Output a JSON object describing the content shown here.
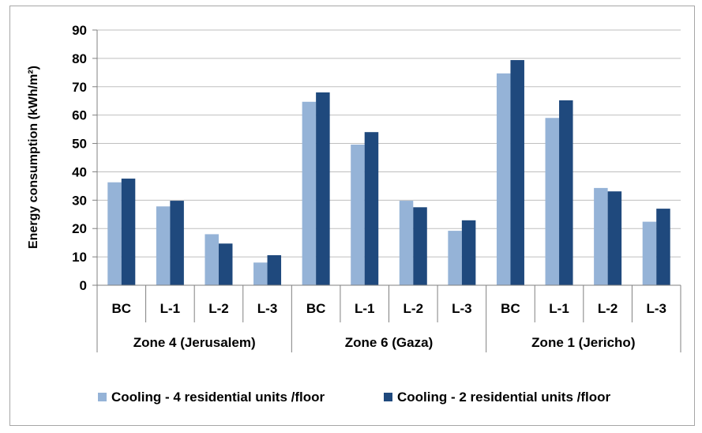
{
  "chart_data": {
    "type": "bar",
    "title": "",
    "xlabel": "",
    "ylabel": "Energy consumption (kWh/m²)",
    "ylim": [
      0,
      90
    ],
    "yticks": [
      0,
      10,
      20,
      30,
      40,
      50,
      60,
      70,
      80,
      90
    ],
    "grid": true,
    "legend_position": "bottom",
    "groups": [
      {
        "label": "Zone 4 (Jerusalem)",
        "categories": [
          "BC",
          "L-1",
          "L-2",
          "L-3"
        ]
      },
      {
        "label": "Zone 6 (Gaza)",
        "categories": [
          "BC",
          "L-1",
          "L-2",
          "L-3"
        ]
      },
      {
        "label": "Zone 1 (Jericho)",
        "categories": [
          "BC",
          "L-1",
          "L-2",
          "L-3"
        ]
      }
    ],
    "series": [
      {
        "name": "Cooling  - 4 residential units /floor",
        "color": "#95b3d7",
        "values": [
          36.3,
          27.8,
          18,
          8,
          64.7,
          49.6,
          29.8,
          19.2,
          74.7,
          59,
          34.3,
          22.4
        ]
      },
      {
        "name": "Cooling - 2 residential units /floor",
        "color": "#1f497d",
        "values": [
          37.6,
          29.8,
          14.7,
          10.6,
          68,
          54,
          27.5,
          22.9,
          79.4,
          65.2,
          33.1,
          27
        ]
      }
    ]
  }
}
